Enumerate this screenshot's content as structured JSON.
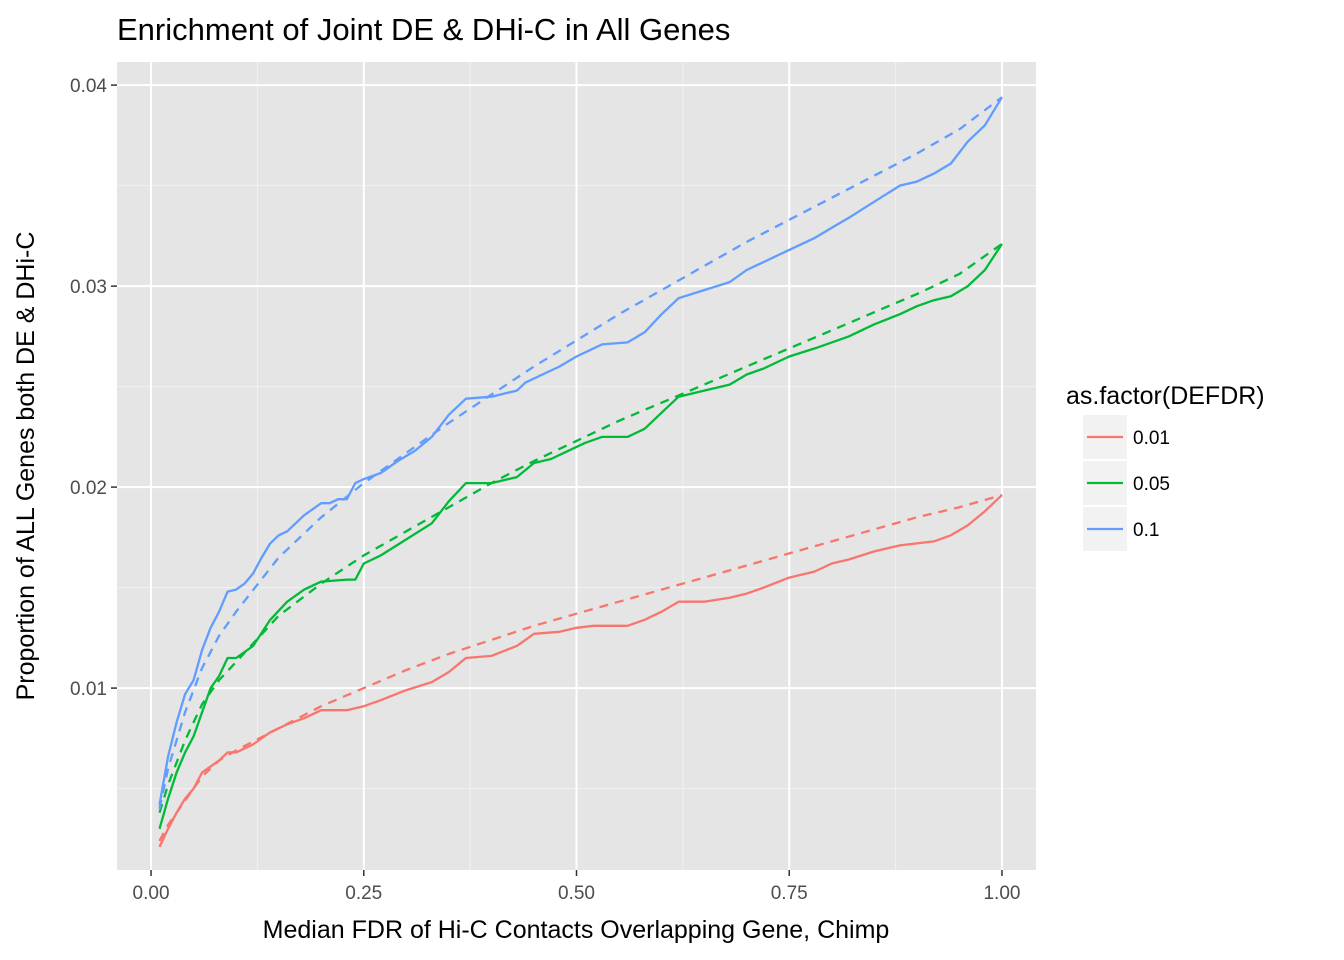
{
  "chart_data": {
    "type": "line",
    "title": "Enrichment of Joint DE & DHi-C in All Genes",
    "xlabel": "Median FDR of Hi-C Contacts Overlapping Gene, Chimp",
    "ylabel": "Proportion of ALL Genes both DE & DHi-C",
    "xlim": [
      -0.04,
      1.04
    ],
    "ylim": [
      0.00095,
      0.04115
    ],
    "x_ticks": [
      0,
      0.25,
      0.5,
      0.75,
      1.0
    ],
    "x_tick_labels": [
      "0.00",
      "0.25",
      "0.50",
      "0.75",
      "1.00"
    ],
    "y_ticks": [
      0.01,
      0.02,
      0.03,
      0.04
    ],
    "y_tick_labels": [
      "0.01",
      "0.02",
      "0.03",
      "0.04"
    ],
    "grid": true,
    "background": "#e5e5e5",
    "legend": {
      "title": "as.factor(DEFDR)",
      "position": "right",
      "entries": [
        "0.01",
        "0.05",
        "0.1"
      ]
    },
    "series": [
      {
        "name": "0.01",
        "color": "#F8766D",
        "observed": {
          "x": [
            0.01,
            0.02,
            0.03,
            0.04,
            0.05,
            0.06,
            0.07,
            0.08,
            0.09,
            0.1,
            0.12,
            0.14,
            0.16,
            0.18,
            0.2,
            0.23,
            0.25,
            0.27,
            0.3,
            0.33,
            0.35,
            0.37,
            0.4,
            0.43,
            0.45,
            0.48,
            0.5,
            0.52,
            0.56,
            0.58,
            0.6,
            0.62,
            0.65,
            0.68,
            0.7,
            0.72,
            0.75,
            0.78,
            0.8,
            0.82,
            0.85,
            0.88,
            0.9,
            0.92,
            0.94,
            0.96,
            0.98,
            1.0
          ],
          "y": [
            0.0021,
            0.003,
            0.0038,
            0.0045,
            0.005,
            0.0058,
            0.0061,
            0.0064,
            0.0068,
            0.0068,
            0.0072,
            0.0078,
            0.0082,
            0.0085,
            0.0089,
            0.0089,
            0.0091,
            0.0094,
            0.0099,
            0.0103,
            0.0108,
            0.0115,
            0.0116,
            0.0121,
            0.0127,
            0.0128,
            0.013,
            0.0131,
            0.0131,
            0.0134,
            0.0138,
            0.0143,
            0.0143,
            0.0145,
            0.0147,
            0.015,
            0.0155,
            0.0158,
            0.0162,
            0.0164,
            0.0168,
            0.0171,
            0.0172,
            0.0173,
            0.0176,
            0.0181,
            0.0188,
            0.0196
          ]
        },
        "expected": {
          "x": [
            0.01,
            0.02,
            0.04,
            0.06,
            0.08,
            0.1,
            0.15,
            0.2,
            0.25,
            0.3,
            0.35,
            0.4,
            0.45,
            0.5,
            0.55,
            0.6,
            0.65,
            0.7,
            0.75,
            0.8,
            0.85,
            0.9,
            0.95,
            1.0
          ],
          "y": [
            0.0024,
            0.0032,
            0.0044,
            0.0056,
            0.0064,
            0.0069,
            0.008,
            0.0091,
            0.01,
            0.0109,
            0.0117,
            0.0124,
            0.0131,
            0.0137,
            0.0143,
            0.0149,
            0.0155,
            0.0161,
            0.0167,
            0.0173,
            0.0179,
            0.0185,
            0.019,
            0.0196
          ]
        }
      },
      {
        "name": "0.05",
        "color": "#00BA38",
        "observed": {
          "x": [
            0.01,
            0.02,
            0.03,
            0.04,
            0.05,
            0.06,
            0.07,
            0.08,
            0.09,
            0.1,
            0.12,
            0.14,
            0.16,
            0.18,
            0.2,
            0.23,
            0.24,
            0.25,
            0.27,
            0.3,
            0.33,
            0.35,
            0.37,
            0.4,
            0.43,
            0.45,
            0.47,
            0.49,
            0.51,
            0.53,
            0.56,
            0.58,
            0.6,
            0.62,
            0.65,
            0.68,
            0.7,
            0.72,
            0.75,
            0.78,
            0.8,
            0.82,
            0.85,
            0.88,
            0.9,
            0.92,
            0.94,
            0.96,
            0.98,
            1.0
          ],
          "y": [
            0.003,
            0.0045,
            0.0058,
            0.0068,
            0.0076,
            0.0088,
            0.01,
            0.0106,
            0.0115,
            0.0115,
            0.0121,
            0.0134,
            0.0143,
            0.0149,
            0.0153,
            0.0154,
            0.0154,
            0.0162,
            0.0166,
            0.0174,
            0.0182,
            0.0193,
            0.0202,
            0.0202,
            0.0205,
            0.0212,
            0.0214,
            0.0218,
            0.0222,
            0.0225,
            0.0225,
            0.0229,
            0.0237,
            0.0245,
            0.0248,
            0.0251,
            0.0256,
            0.0259,
            0.0265,
            0.0269,
            0.0272,
            0.0275,
            0.0281,
            0.0286,
            0.029,
            0.0293,
            0.0295,
            0.03,
            0.0308,
            0.0321
          ]
        },
        "expected": {
          "x": [
            0.01,
            0.02,
            0.04,
            0.06,
            0.08,
            0.1,
            0.15,
            0.2,
            0.25,
            0.3,
            0.35,
            0.4,
            0.45,
            0.5,
            0.55,
            0.6,
            0.65,
            0.7,
            0.75,
            0.8,
            0.85,
            0.9,
            0.95,
            1.0
          ],
          "y": [
            0.0038,
            0.0052,
            0.0074,
            0.0092,
            0.0104,
            0.0113,
            0.0136,
            0.0152,
            0.0166,
            0.0178,
            0.019,
            0.0202,
            0.0213,
            0.0223,
            0.0233,
            0.0242,
            0.0251,
            0.026,
            0.0269,
            0.0278,
            0.0287,
            0.0296,
            0.0306,
            0.0321
          ]
        }
      },
      {
        "name": "0.1",
        "color": "#619CFF",
        "observed": {
          "x": [
            0.01,
            0.02,
            0.03,
            0.04,
            0.05,
            0.06,
            0.07,
            0.08,
            0.09,
            0.1,
            0.11,
            0.12,
            0.13,
            0.14,
            0.15,
            0.16,
            0.18,
            0.2,
            0.21,
            0.22,
            0.23,
            0.24,
            0.25,
            0.27,
            0.29,
            0.31,
            0.33,
            0.35,
            0.37,
            0.4,
            0.43,
            0.44,
            0.46,
            0.48,
            0.5,
            0.53,
            0.56,
            0.58,
            0.6,
            0.62,
            0.65,
            0.68,
            0.7,
            0.72,
            0.75,
            0.78,
            0.8,
            0.82,
            0.85,
            0.88,
            0.9,
            0.92,
            0.94,
            0.96,
            0.98,
            1.0
          ],
          "y": [
            0.0042,
            0.0066,
            0.0083,
            0.0097,
            0.0104,
            0.0119,
            0.013,
            0.0138,
            0.0148,
            0.0149,
            0.0152,
            0.0157,
            0.0165,
            0.0172,
            0.0176,
            0.0178,
            0.0186,
            0.0192,
            0.0192,
            0.0194,
            0.0194,
            0.0202,
            0.0204,
            0.0207,
            0.0213,
            0.0218,
            0.0225,
            0.0236,
            0.0244,
            0.0245,
            0.0248,
            0.0252,
            0.0256,
            0.026,
            0.0265,
            0.0271,
            0.0272,
            0.0277,
            0.0286,
            0.0294,
            0.0298,
            0.0302,
            0.0308,
            0.0312,
            0.0318,
            0.0324,
            0.0329,
            0.0334,
            0.0342,
            0.035,
            0.0352,
            0.0356,
            0.0361,
            0.0372,
            0.038,
            0.0394
          ]
        },
        "expected": {
          "x": [
            0.01,
            0.02,
            0.04,
            0.06,
            0.08,
            0.1,
            0.15,
            0.2,
            0.25,
            0.3,
            0.35,
            0.4,
            0.45,
            0.5,
            0.55,
            0.6,
            0.65,
            0.7,
            0.75,
            0.8,
            0.85,
            0.9,
            0.95,
            1.0
          ],
          "y": [
            0.004,
            0.006,
            0.0088,
            0.011,
            0.0126,
            0.0138,
            0.0165,
            0.0185,
            0.0202,
            0.0217,
            0.0232,
            0.0246,
            0.026,
            0.0273,
            0.0286,
            0.0298,
            0.031,
            0.0322,
            0.0333,
            0.0344,
            0.0355,
            0.0366,
            0.0378,
            0.0394
          ]
        }
      }
    ]
  }
}
